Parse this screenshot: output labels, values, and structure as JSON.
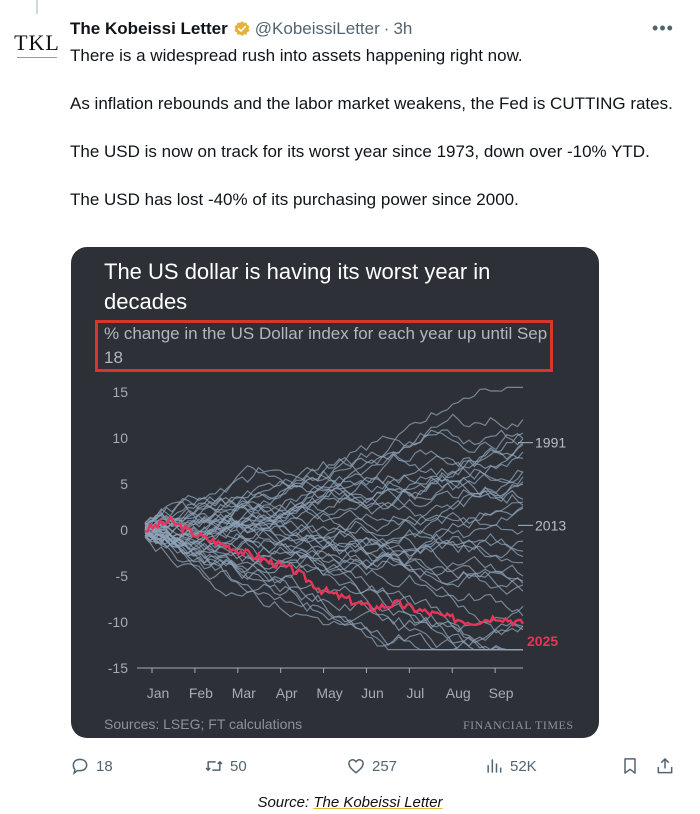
{
  "tweet": {
    "author_name": "The Kobeissi Letter",
    "handle": "@KobeissiLetter",
    "separator": "·",
    "time": "3h",
    "avatar_text": "TKL",
    "more_icon": "more-horizontal-icon",
    "verified_icon": "verified-badge-icon",
    "verified_color": "#e8b13a",
    "paragraphs": [
      "There is a widespread rush into assets happening right now.",
      "As inflation rebounds and the labor market weakens, the Fed is CUTTING rates.",
      "The USD is now on track for its worst year since 1973, down over -10% YTD.",
      "The USD has lost -40% of its purchasing power since 2000."
    ]
  },
  "chart_card": {
    "title": "The US dollar is having its worst year in decades",
    "subtitle": "% change in the US Dollar index for each year up until Sep 18",
    "source": "Sources: LSEG; FT calculations",
    "brand": "FINANCIAL TIMES",
    "background_color": "#2d3036",
    "highlight_color": "#e8345b",
    "annotation_box_color": "#d9352e"
  },
  "chart_data": {
    "type": "line",
    "title": "The US dollar is having its worst year in decades",
    "subtitle": "% change in the US Dollar index for each year up until Sep 18",
    "x_ticks": [
      "Jan",
      "Feb",
      "Mar",
      "Apr",
      "May",
      "Jun",
      "Jul",
      "Aug",
      "Sep"
    ],
    "y_ticks": [
      15,
      10,
      5,
      0,
      -5,
      -10,
      -15
    ],
    "ylim": [
      -15,
      15
    ],
    "series_color": "#8fa3b8",
    "labeled_series": [
      {
        "name": "1991",
        "end_value": 9.5,
        "color": "#8fa3b8"
      },
      {
        "name": "2013",
        "end_value": 0.5,
        "color": "#8fa3b8"
      },
      {
        "name": "2025",
        "end_value": -10.2,
        "color": "#e8345b",
        "values": [
          0,
          1.0,
          -0.5,
          -1.5,
          -2.5,
          -3.5,
          -4.5,
          -6.5,
          -7.5,
          -8.5,
          -8.0,
          -8.8,
          -9.5,
          -10.0,
          -9.4,
          -10.2
        ]
      }
    ],
    "background_series_count": 40
  },
  "actions": {
    "reply_count": "18",
    "retweet_count": "50",
    "like_count": "257",
    "views_count": "52K",
    "icons": [
      "reply-icon",
      "retweet-icon",
      "like-icon",
      "views-icon",
      "bookmark-icon",
      "share-icon"
    ]
  },
  "caption": {
    "prefix": "Source: ",
    "link_text": "The Kobeissi Letter"
  }
}
